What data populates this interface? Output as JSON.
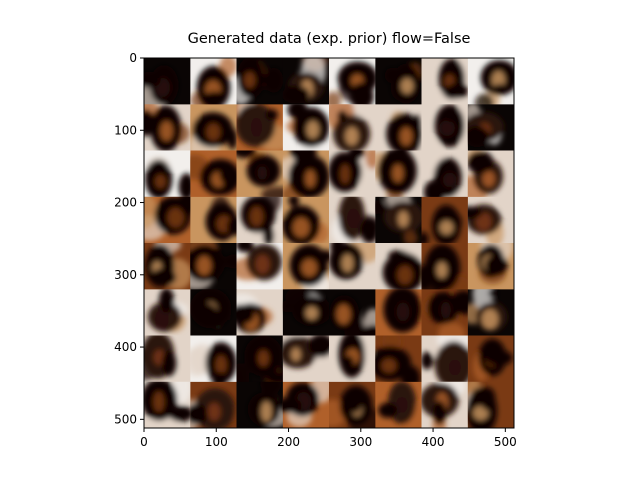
{
  "chart_data": {
    "type": "image-grid",
    "title": "Generated data (exp. prior) flow=False",
    "xlabel": "",
    "ylabel": "",
    "xlim": [
      0,
      512
    ],
    "ylim": [
      512,
      0
    ],
    "x_ticks": [
      0,
      100,
      200,
      300,
      400,
      500
    ],
    "y_ticks": [
      0,
      100,
      200,
      300,
      400,
      500
    ],
    "grid": false,
    "legend": "none",
    "rows": 8,
    "cols": 8,
    "tile_size": 64,
    "colors": {
      "dark": "#0a0504",
      "hair": "#2a1208",
      "brown": "#7a3a14",
      "orange": "#b0602a",
      "skin": "#c9955f",
      "light": "#e2d4c8",
      "white": "#f2efec"
    }
  }
}
